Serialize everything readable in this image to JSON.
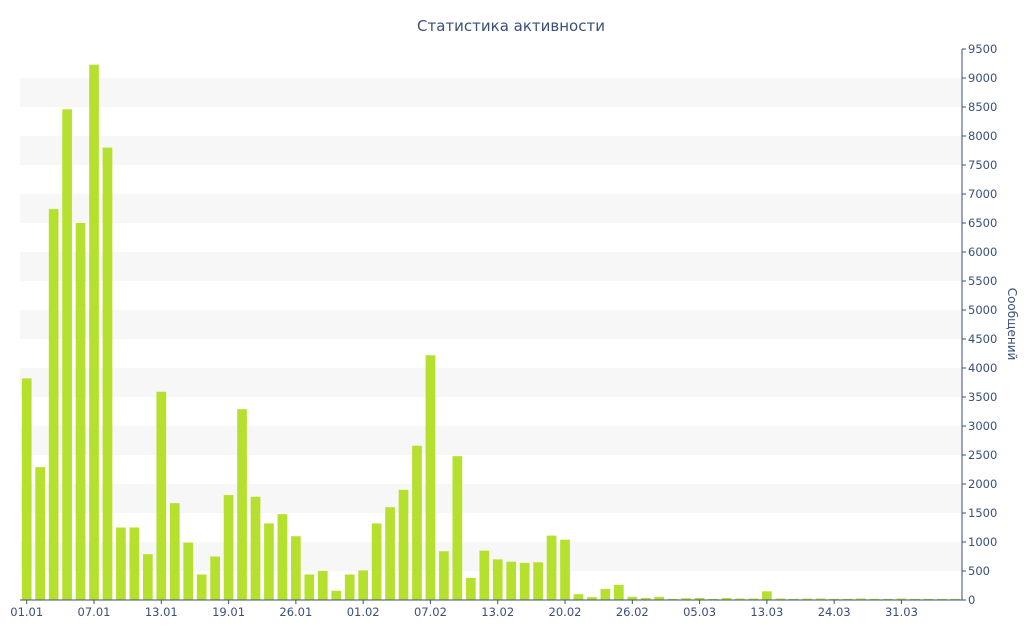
{
  "chart_data": {
    "type": "bar",
    "title": "Статистика активности",
    "xlabel": "",
    "ylabel": "Сообщений",
    "ylim": [
      0,
      9500
    ],
    "y_axis_position": "right",
    "y_ticks": [
      0,
      500,
      1000,
      1500,
      2000,
      2500,
      3000,
      3500,
      4000,
      4500,
      5000,
      5500,
      6000,
      6500,
      7000,
      7500,
      8000,
      8500,
      9000,
      9500
    ],
    "x_tick_labels": [
      "01.01",
      "07.01",
      "13.01",
      "19.01",
      "26.01",
      "01.02",
      "07.02",
      "13.02",
      "20.02",
      "26.02",
      "05.03",
      "13.03",
      "24.03",
      "31.03"
    ],
    "x_tick_indices": [
      0,
      5,
      10,
      15,
      20,
      25,
      30,
      35,
      40,
      45,
      50,
      55,
      60,
      65
    ],
    "grid": "alternating horizontal bands",
    "bar_color": "#b5e02e",
    "values": [
      3820,
      2290,
      6740,
      8460,
      6500,
      9230,
      7800,
      1250,
      1250,
      790,
      3590,
      1670,
      990,
      440,
      750,
      1810,
      3290,
      1780,
      1320,
      1480,
      1100,
      440,
      500,
      160,
      440,
      510,
      1320,
      1600,
      1900,
      2660,
      4220,
      840,
      2480,
      380,
      850,
      700,
      660,
      640,
      650,
      1110,
      1040,
      100,
      50,
      190,
      260,
      55,
      35,
      55,
      20,
      30,
      35,
      20,
      35,
      25,
      25,
      150,
      25,
      20,
      25,
      25,
      20,
      20,
      25,
      20,
      20,
      25,
      20,
      20,
      20,
      20
    ]
  }
}
